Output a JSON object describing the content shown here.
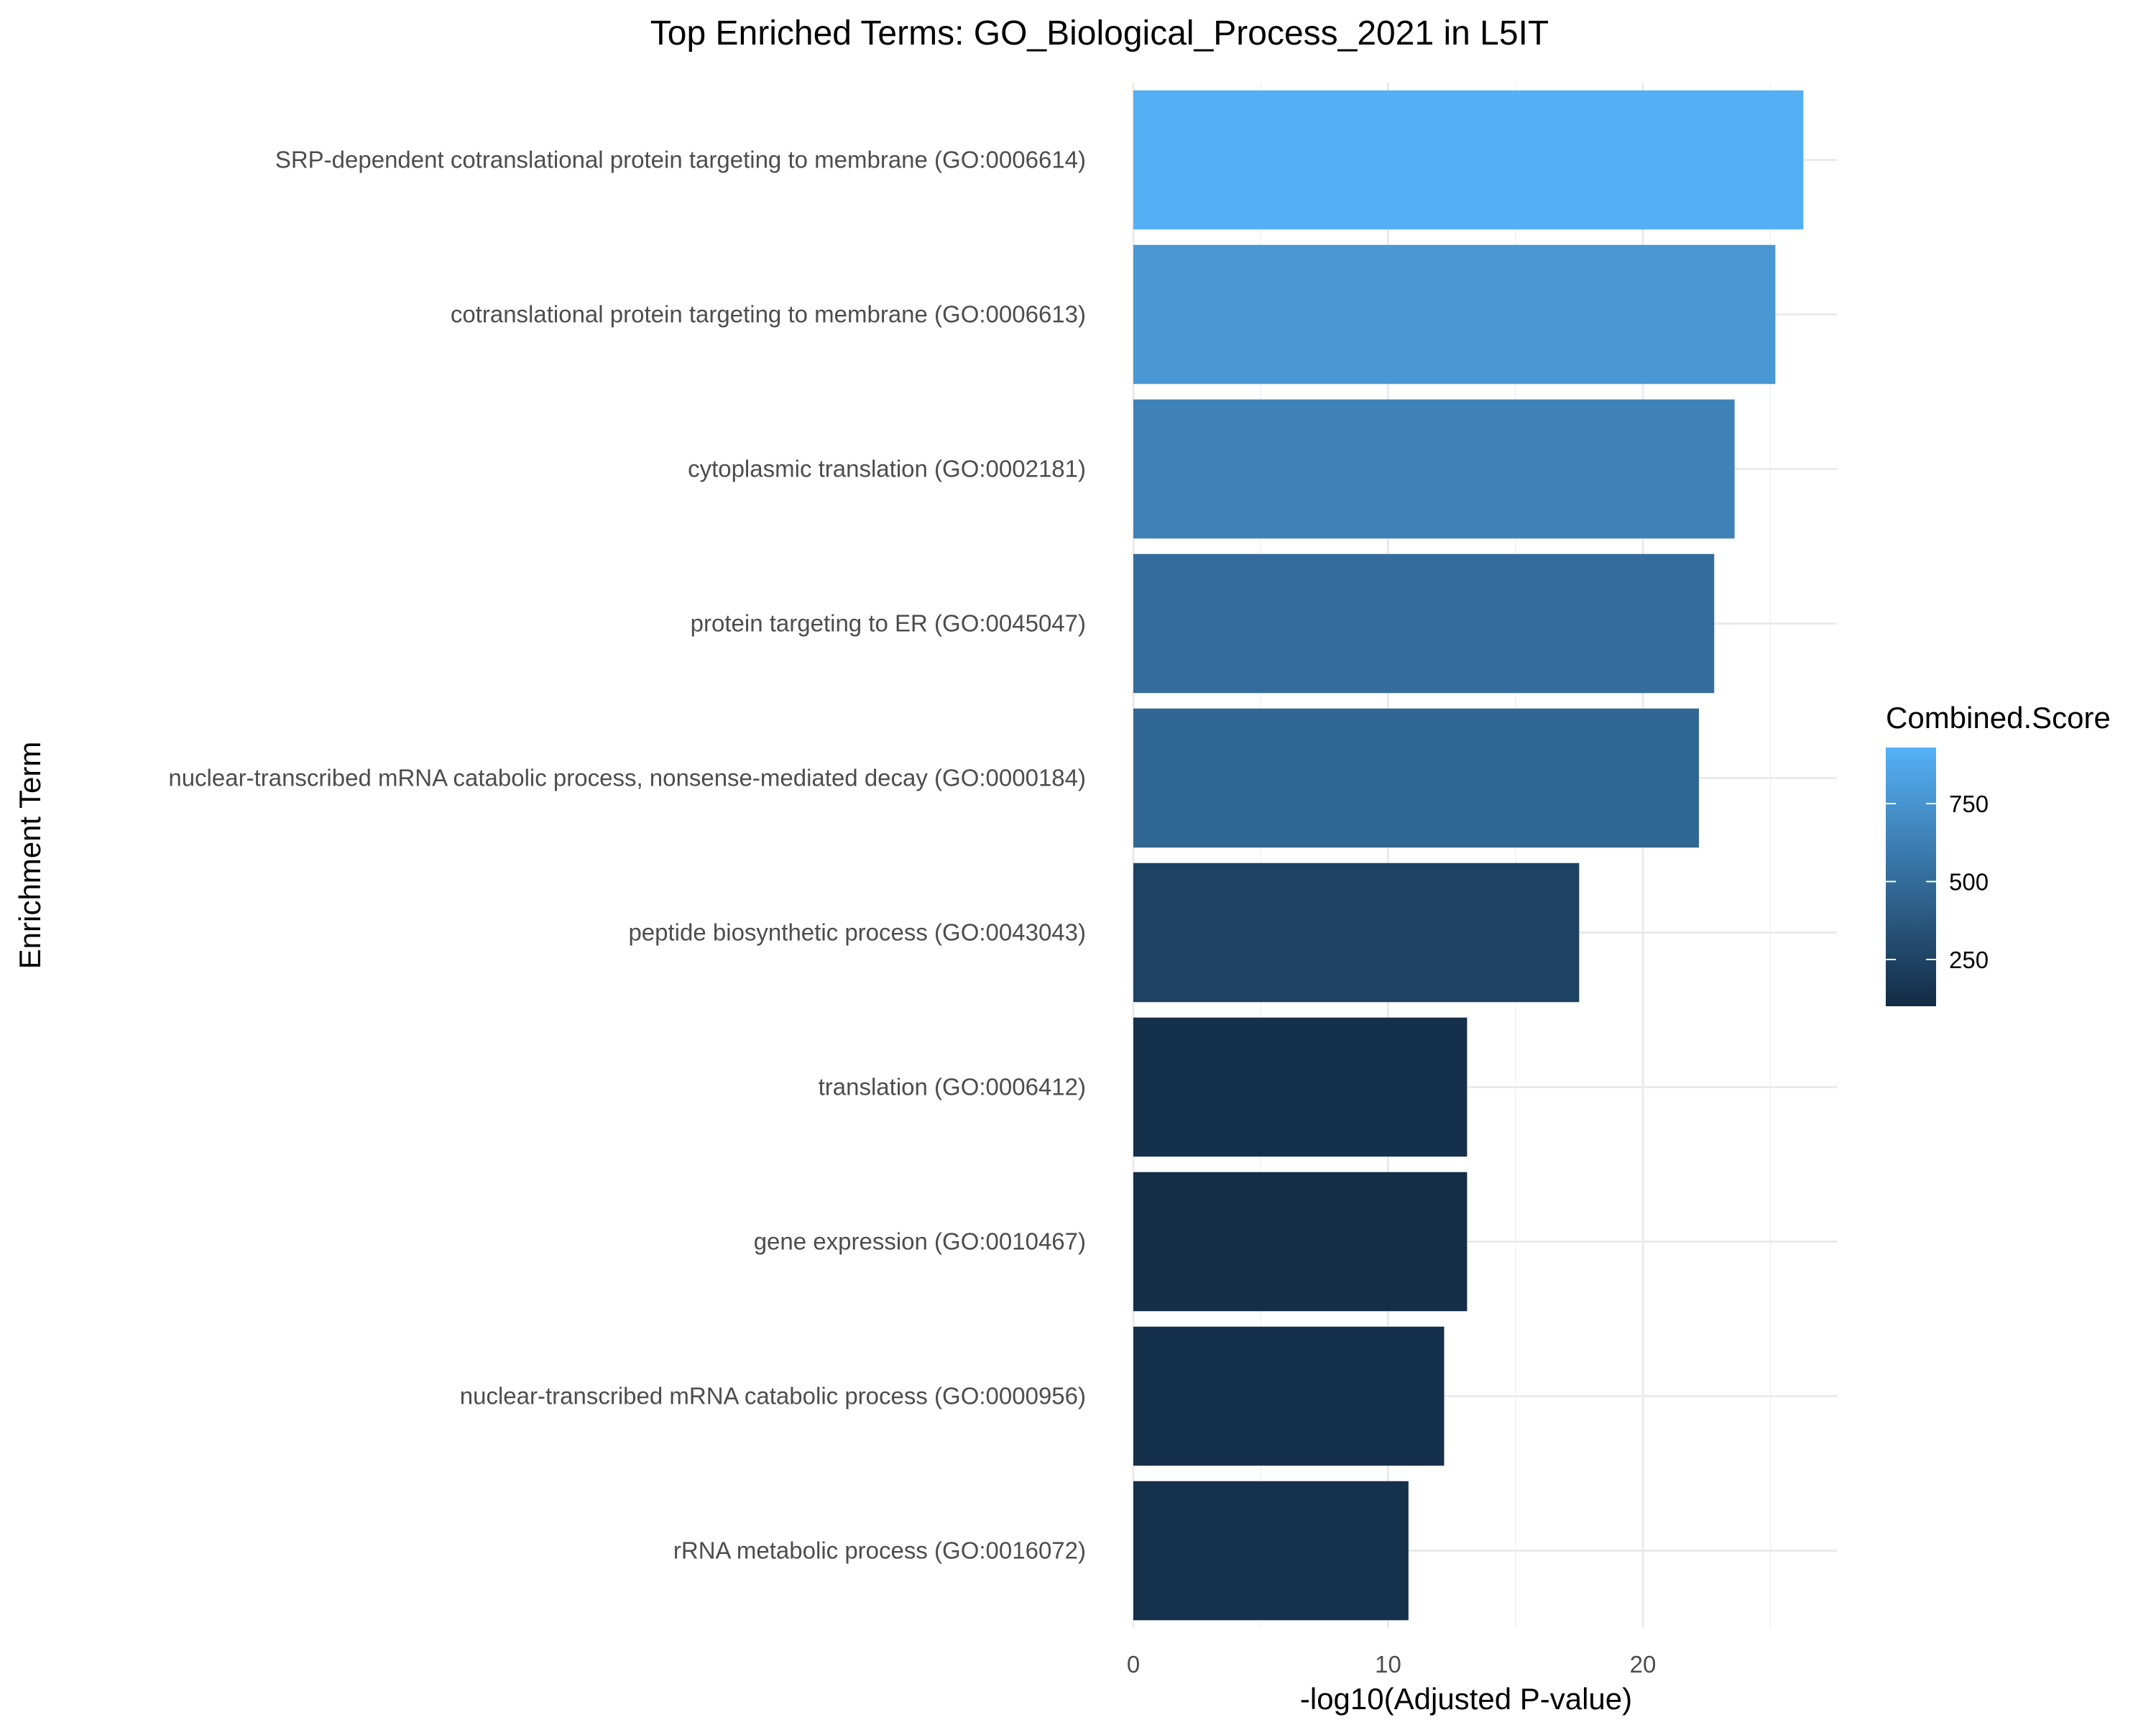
{
  "chart_data": {
    "type": "bar",
    "orientation": "horizontal",
    "title": "Top Enriched Terms: GO_Biological_Process_2021 in L5IT",
    "xlabel": "-log10(Adjusted P-value)",
    "ylabel": "Enrichment Term",
    "xlim": [
      0,
      27.6
    ],
    "xticks": [
      0,
      10,
      20
    ],
    "grid": true,
    "categories": [
      "SRP-dependent cotranslational protein targeting to membrane (GO:0006614)",
      "cotranslational protein targeting to membrane (GO:0006613)",
      "cytoplasmic translation (GO:0002181)",
      "protein targeting to ER (GO:0045047)",
      "nuclear-transcribed mRNA catabolic process, nonsense-mediated decay (GO:0000184)",
      "peptide biosynthetic process (GO:0043043)",
      "translation (GO:0006412)",
      "gene expression (GO:0010467)",
      "nuclear-transcribed mRNA catabolic process (GO:0000956)",
      "rRNA metabolic process (GO:0016072)"
    ],
    "values": [
      26.3,
      25.2,
      23.6,
      22.8,
      22.2,
      17.5,
      13.1,
      13.1,
      12.2,
      10.8
    ],
    "color_values": [
      920,
      770,
      640,
      510,
      470,
      240,
      130,
      120,
      130,
      140
    ],
    "legend": {
      "title": "Combined.Score",
      "placement": "right",
      "range": [
        100,
        930
      ],
      "ticks": [
        250,
        500,
        750
      ],
      "low_color": "#132B43",
      "high_color": "#56B1F7"
    }
  }
}
